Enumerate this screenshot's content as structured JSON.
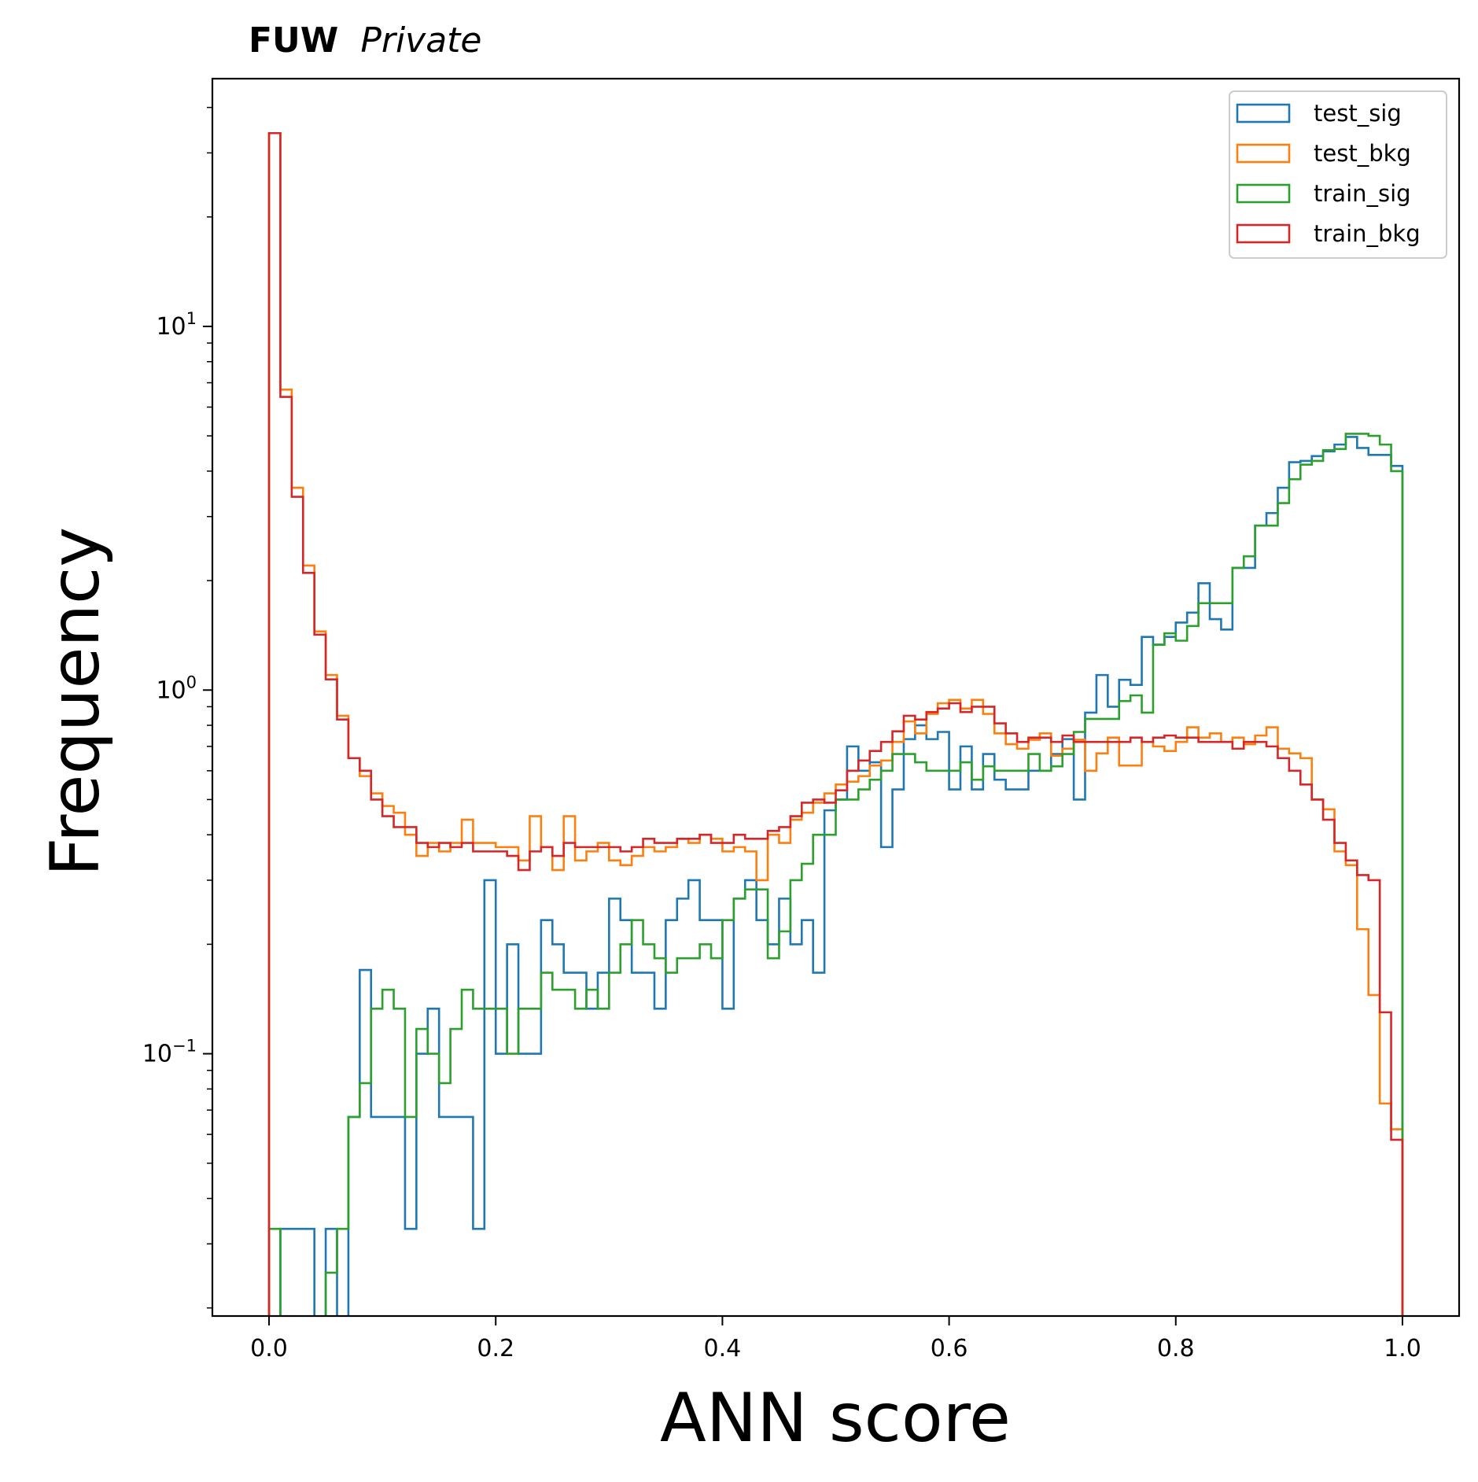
{
  "header": {
    "brand": "FUW",
    "tag": "Private"
  },
  "chart_data": {
    "type": "histogram",
    "xlabel": "ANN score",
    "ylabel": "Frequency",
    "xlim": [
      -0.05,
      1.05
    ],
    "ylim": [
      0.019,
      48
    ],
    "yscale": "log",
    "x_ticks": [
      {
        "value": 0.0,
        "label": "0.0"
      },
      {
        "value": 0.2,
        "label": "0.2"
      },
      {
        "value": 0.4,
        "label": "0.4"
      },
      {
        "value": 0.6,
        "label": "0.6"
      },
      {
        "value": 0.8,
        "label": "0.8"
      },
      {
        "value": 1.0,
        "label": "1.0"
      }
    ],
    "y_ticks": [
      {
        "value": 10,
        "base": "10",
        "exp": "1"
      },
      {
        "value": 1,
        "base": "10",
        "exp": "0"
      },
      {
        "value": 0.1,
        "base": "10",
        "exp": "−1"
      }
    ],
    "legend_position": "top-right",
    "bin_edges_range": [
      0,
      1
    ],
    "bins": 100,
    "series": [
      {
        "name": "test_sig",
        "color": "#1f77b4",
        "values": [
          0,
          0.033,
          0.033,
          0.033,
          0,
          0.033,
          0,
          0.067,
          0.17,
          0.067,
          0.067,
          0.067,
          0.033,
          0.1,
          0.133,
          0.067,
          0.067,
          0.067,
          0.033,
          0.3,
          0.1,
          0.2,
          0.1,
          0.1,
          0.233,
          0.2,
          0.167,
          0.167,
          0.133,
          0.167,
          0.267,
          0.233,
          0.167,
          0.167,
          0.133,
          0.233,
          0.267,
          0.3,
          0.233,
          0.233,
          0.133,
          0.267,
          0.3,
          0.233,
          0.2,
          0.267,
          0.2,
          0.233,
          0.167,
          0.467,
          0.5,
          0.7,
          0.6,
          0.633,
          0.37,
          0.533,
          0.733,
          0.8,
          0.733,
          0.767,
          0.533,
          0.7,
          0.533,
          0.667,
          0.567,
          0.533,
          0.533,
          0.6,
          0.6,
          0.667,
          0.733,
          0.5,
          0.867,
          1.1,
          0.9,
          1.067,
          1.033,
          1.4,
          1.333,
          1.4,
          1.533,
          1.633,
          1.967,
          1.567,
          1.467,
          2.167,
          2.167,
          2.833,
          3.067,
          3.6,
          4.233,
          4.267,
          4.4,
          4.533,
          4.733,
          4.967,
          4.633,
          4.433,
          4.433,
          4.133
        ]
      },
      {
        "name": "test_bkg",
        "color": "#ff7f0e",
        "values": [
          34,
          6.7,
          3.6,
          2.2,
          1.45,
          1.1,
          0.85,
          0.65,
          0.58,
          0.52,
          0.48,
          0.46,
          0.4,
          0.35,
          0.38,
          0.36,
          0.38,
          0.44,
          0.38,
          0.38,
          0.37,
          0.37,
          0.34,
          0.45,
          0.37,
          0.32,
          0.45,
          0.34,
          0.36,
          0.38,
          0.34,
          0.33,
          0.35,
          0.37,
          0.36,
          0.37,
          0.39,
          0.38,
          0.4,
          0.39,
          0.36,
          0.37,
          0.36,
          0.3,
          0.4,
          0.38,
          0.44,
          0.46,
          0.49,
          0.52,
          0.55,
          0.56,
          0.58,
          0.62,
          0.64,
          0.72,
          0.82,
          0.76,
          0.86,
          0.92,
          0.94,
          0.89,
          0.94,
          0.86,
          0.76,
          0.71,
          0.69,
          0.73,
          0.76,
          0.66,
          0.69,
          0.73,
          0.6,
          0.67,
          0.74,
          0.62,
          0.62,
          0.72,
          0.7,
          0.68,
          0.72,
          0.79,
          0.74,
          0.76,
          0.72,
          0.74,
          0.71,
          0.75,
          0.79,
          0.69,
          0.67,
          0.65,
          0.5,
          0.47,
          0.36,
          0.33,
          0.22,
          0.145,
          0.073,
          0.062
        ]
      },
      {
        "name": "train_sig",
        "color": "#2ca02c",
        "values": [
          0.033,
          0.017,
          0.017,
          0.017,
          0.017,
          0.025,
          0.033,
          0.067,
          0.083,
          0.133,
          0.15,
          0.133,
          0.067,
          0.117,
          0.1,
          0.083,
          0.117,
          0.15,
          0.133,
          0.133,
          0.133,
          0.1,
          0.133,
          0.133,
          0.167,
          0.15,
          0.15,
          0.133,
          0.15,
          0.133,
          0.167,
          0.2,
          0.233,
          0.2,
          0.183,
          0.167,
          0.183,
          0.183,
          0.2,
          0.183,
          0.233,
          0.267,
          0.283,
          0.283,
          0.183,
          0.217,
          0.3,
          0.333,
          0.4,
          0.4,
          0.5,
          0.5,
          0.533,
          0.567,
          0.6,
          0.667,
          0.667,
          0.633,
          0.6,
          0.6,
          0.6,
          0.633,
          0.567,
          0.617,
          0.6,
          0.6,
          0.6,
          0.667,
          0.6,
          0.617,
          0.667,
          0.767,
          0.833,
          0.833,
          0.833,
          0.933,
          0.967,
          0.867,
          1.333,
          1.433,
          1.367,
          1.5,
          1.733,
          1.733,
          1.733,
          2.167,
          2.333,
          2.833,
          2.833,
          3.267,
          3.8,
          4.167,
          4.267,
          4.567,
          4.6,
          5.067,
          5.067,
          5.0,
          4.733,
          4.0
        ]
      },
      {
        "name": "train_bkg",
        "color": "#d62728",
        "values": [
          34,
          6.4,
          3.4,
          2.1,
          1.42,
          1.07,
          0.83,
          0.65,
          0.6,
          0.5,
          0.45,
          0.42,
          0.42,
          0.38,
          0.37,
          0.38,
          0.37,
          0.38,
          0.36,
          0.36,
          0.36,
          0.35,
          0.32,
          0.36,
          0.37,
          0.35,
          0.38,
          0.37,
          0.37,
          0.37,
          0.37,
          0.36,
          0.37,
          0.39,
          0.38,
          0.38,
          0.39,
          0.39,
          0.4,
          0.38,
          0.38,
          0.4,
          0.39,
          0.39,
          0.41,
          0.42,
          0.45,
          0.49,
          0.5,
          0.49,
          0.53,
          0.6,
          0.64,
          0.68,
          0.72,
          0.77,
          0.85,
          0.83,
          0.87,
          0.89,
          0.92,
          0.87,
          0.9,
          0.9,
          0.81,
          0.76,
          0.72,
          0.74,
          0.74,
          0.72,
          0.75,
          0.72,
          0.72,
          0.72,
          0.72,
          0.72,
          0.74,
          0.72,
          0.74,
          0.75,
          0.74,
          0.74,
          0.72,
          0.72,
          0.72,
          0.69,
          0.72,
          0.72,
          0.7,
          0.65,
          0.6,
          0.55,
          0.5,
          0.44,
          0.38,
          0.34,
          0.31,
          0.3,
          0.13,
          0.058
        ]
      }
    ]
  }
}
